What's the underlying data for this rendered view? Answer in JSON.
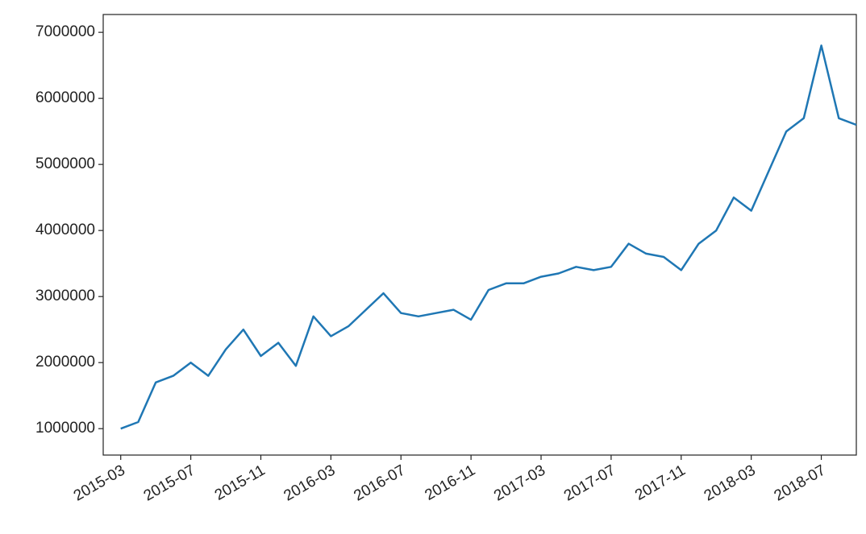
{
  "chart_data": {
    "type": "line",
    "x": [
      "2015-03",
      "2015-04",
      "2015-05",
      "2015-06",
      "2015-07",
      "2015-08",
      "2015-09",
      "2015-10",
      "2015-11",
      "2015-12",
      "2016-01",
      "2016-02",
      "2016-03",
      "2016-04",
      "2016-05",
      "2016-06",
      "2016-07",
      "2016-08",
      "2016-09",
      "2016-10",
      "2016-11",
      "2016-12",
      "2017-01",
      "2017-02",
      "2017-03",
      "2017-04",
      "2017-05",
      "2017-06",
      "2017-07",
      "2017-08",
      "2017-09",
      "2017-10",
      "2017-11",
      "2017-12",
      "2018-01",
      "2018-02",
      "2018-03",
      "2018-04",
      "2018-05",
      "2018-06",
      "2018-07",
      "2018-08",
      "2018-09"
    ],
    "values": [
      1000000,
      1100000,
      1700000,
      1800000,
      2000000,
      1800000,
      2200000,
      2500000,
      2100000,
      2300000,
      1950000,
      2700000,
      2400000,
      2550000,
      2800000,
      3050000,
      2750000,
      2700000,
      2750000,
      2800000,
      2650000,
      3100000,
      3200000,
      3200000,
      3300000,
      3350000,
      3450000,
      3400000,
      3450000,
      3800000,
      3650000,
      3600000,
      3400000,
      3800000,
      4000000,
      4500000,
      4300000,
      4900000,
      5500000,
      5700000,
      6800000,
      5700000,
      5600000
    ],
    "color": "#1f77b4",
    "xlim": [
      "2015-02",
      "2018-09"
    ],
    "xticks": [
      "2015-03",
      "2015-07",
      "2015-11",
      "2016-03",
      "2016-07",
      "2016-11",
      "2017-03",
      "2017-07",
      "2017-11",
      "2018-03",
      "2018-07"
    ],
    "ylim": [
      600000,
      7270000
    ],
    "yticks": [
      1000000,
      2000000,
      3000000,
      4000000,
      5000000,
      6000000,
      7000000
    ]
  }
}
